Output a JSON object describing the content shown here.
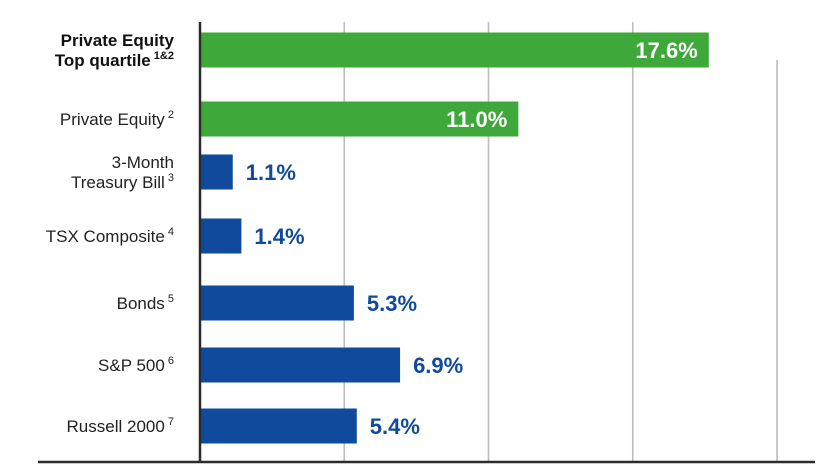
{
  "chart_data": {
    "type": "bar",
    "orientation": "horizontal",
    "categories": [
      "Private Equity Top quartile",
      "Private Equity",
      "3-Month Treasury Bill",
      "TSX Composite",
      "Bonds",
      "S&P 500",
      "Russell 2000"
    ],
    "category_labels": [
      {
        "lines": [
          "Private Equity",
          "Top quartile"
        ],
        "footnote": "1&2",
        "bold": true
      },
      {
        "lines": [
          "Private Equity"
        ],
        "footnote": "2",
        "bold": false
      },
      {
        "lines": [
          "3-Month",
          "Treasury Bill"
        ],
        "footnote": "3",
        "bold": false
      },
      {
        "lines": [
          "TSX Composite"
        ],
        "footnote": "4",
        "bold": false
      },
      {
        "lines": [
          "Bonds"
        ],
        "footnote": "5",
        "bold": false
      },
      {
        "lines": [
          "S&P 500"
        ],
        "footnote": "6",
        "bold": false
      },
      {
        "lines": [
          "Russell 2000"
        ],
        "footnote": "7",
        "bold": false
      }
    ],
    "values": [
      17.6,
      11.0,
      1.1,
      1.4,
      5.3,
      6.9,
      5.4
    ],
    "value_labels": [
      "17.6%",
      "11.0%",
      "1.1%",
      "1.4%",
      "5.3%",
      "6.9%",
      "5.4%"
    ],
    "bar_colors": [
      "#3ea83a",
      "#3ea83a",
      "#0f4a9c",
      "#0f4a9c",
      "#0f4a9c",
      "#0f4a9c",
      "#0f4a9c"
    ],
    "xlim": [
      0,
      20
    ],
    "grid_values": [
      5,
      10,
      15,
      20
    ],
    "grid": true,
    "xlabel": "",
    "ylabel": "",
    "title": ""
  },
  "colors": {
    "green": "#3ea83a",
    "blue": "#0f4a9c",
    "gridline": "#bdbdbd",
    "axis": "#2b2b2b"
  }
}
